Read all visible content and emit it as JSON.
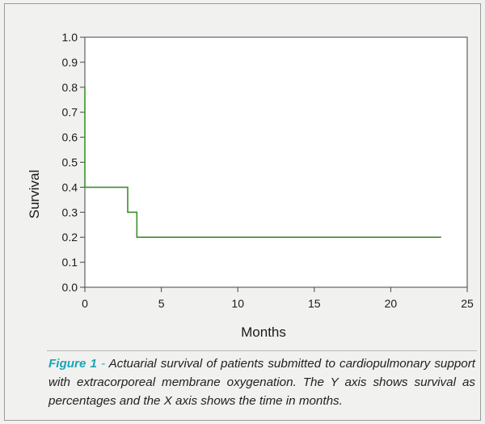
{
  "chart_data": {
    "type": "line",
    "step": true,
    "xlabel": "Months",
    "ylabel": "Survival",
    "xlim": [
      0,
      25
    ],
    "ylim": [
      0.0,
      1.0
    ],
    "x_ticks": [
      0,
      5,
      10,
      15,
      20,
      25
    ],
    "x_tick_labels": [
      "0",
      "5",
      "10",
      "15",
      "20",
      "25"
    ],
    "y_ticks": [
      0.0,
      0.1,
      0.2,
      0.3,
      0.4,
      0.5,
      0.6,
      0.7,
      0.8,
      0.9,
      1.0
    ],
    "y_tick_labels": [
      "0.0",
      "0.1",
      "0.2",
      "0.3",
      "0.4",
      "0.5",
      "0.6",
      "0.7",
      "0.8",
      "0.9",
      "1.0"
    ],
    "grid": false,
    "series": [
      {
        "color": "#3c8f2e",
        "points": [
          [
            0,
            0.8
          ],
          [
            0,
            0.4
          ],
          [
            2.8,
            0.4
          ],
          [
            2.8,
            0.3
          ],
          [
            3.4,
            0.3
          ],
          [
            3.4,
            0.2
          ],
          [
            23.3,
            0.2
          ]
        ]
      }
    ]
  },
  "caption": {
    "label": "Figure 1",
    "separator": " - ",
    "text": "Actuarial survival of patients submitted to cardiopulmonary support with extracorporeal membrane oxygenation. The Y axis shows survival as percentages and the X axis shows the time in months."
  }
}
